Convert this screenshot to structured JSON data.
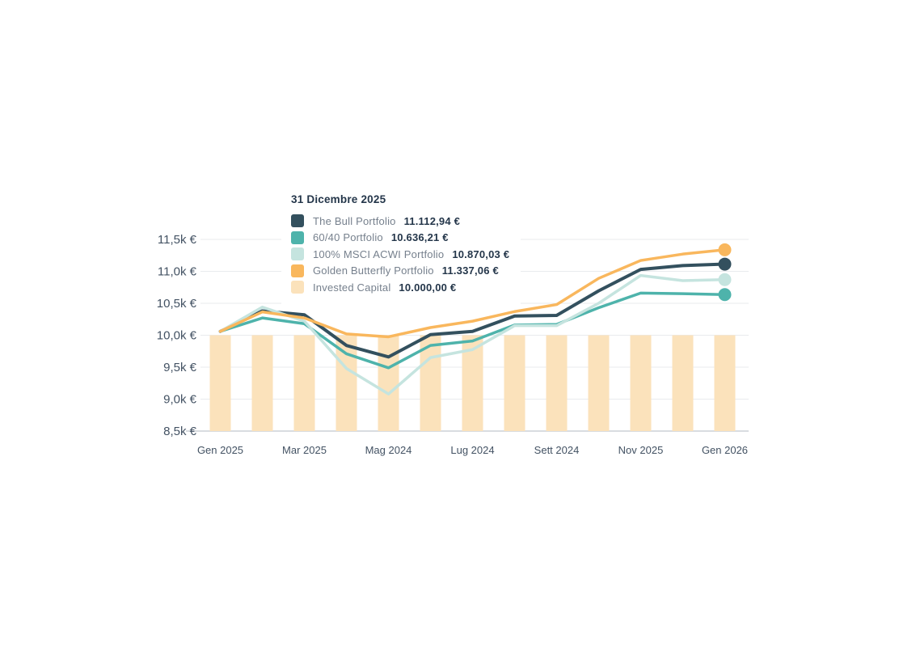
{
  "tooltip": {
    "date": "31 Dicembre 2025",
    "rows": [
      {
        "label": "The Bull Portfolio",
        "value": "11.112,94 €",
        "color": "#33505e"
      },
      {
        "label": "60/40 Portfolio",
        "value": "10.636,21 €",
        "color": "#4eb3ab"
      },
      {
        "label": "100% MSCI ACWI Portfolio",
        "value": "10.870,03 €",
        "color": "#c5e4df"
      },
      {
        "label": "Golden Butterfly Portfolio",
        "value": "11.337,06 €",
        "color": "#f9b75d"
      },
      {
        "label": "Invested Capital",
        "value": "10.000,00 €",
        "color": "#fbe2bb"
      }
    ]
  },
  "chart_data": {
    "type": "line",
    "title": "",
    "xlabel": "",
    "ylabel": "",
    "months_count": 13,
    "x_tick_labels": [
      "Gen 2025",
      "Mar 2025",
      "Mag 2024",
      "Lug 2024",
      "Sett 2024",
      "Nov 2025",
      "Gen 2026"
    ],
    "x_tick_month_indices": [
      0,
      2,
      4,
      6,
      8,
      10,
      12
    ],
    "y_tick_labels": [
      "11,5k €",
      "11,0k €",
      "10,5k €",
      "10,0k €",
      "9,5k €",
      "9,0k €",
      "8,5k €"
    ],
    "y_range": [
      8500,
      11500
    ],
    "grid": true,
    "legend_position": "tooltip-overlay",
    "series": [
      {
        "name": "The Bull Portfolio",
        "color": "#33505e",
        "stroke_width": 4,
        "values": [
          10060,
          10380,
          10320,
          9840,
          9660,
          10010,
          10060,
          10300,
          10310,
          10695,
          11030,
          11090,
          11112.94
        ]
      },
      {
        "name": "60/40 Portfolio",
        "color": "#4eb3ab",
        "stroke_width": 3.5,
        "values": [
          10060,
          10270,
          10180,
          9710,
          9490,
          9840,
          9910,
          10160,
          10170,
          10430,
          10660,
          10650,
          10636.21
        ]
      },
      {
        "name": "100% MSCI ACWI Portfolio",
        "color": "#c5e4df",
        "stroke_width": 3.5,
        "values": [
          10060,
          10440,
          10220,
          9480,
          9080,
          9650,
          9775,
          10150,
          10150,
          10500,
          10935,
          10855,
          10870.03
        ]
      },
      {
        "name": "Golden Butterfly Portfolio",
        "color": "#f9b75d",
        "stroke_width": 3.5,
        "values": [
          10060,
          10365,
          10270,
          10020,
          9975,
          10120,
          10220,
          10370,
          10480,
          10890,
          11170,
          11270,
          11337.06
        ]
      }
    ],
    "bars": {
      "name": "Invested Capital",
      "color": "#fbe2bb",
      "values": [
        10000,
        10000,
        10000,
        10000,
        10000,
        10000,
        10000,
        10000,
        10000,
        10000,
        10000,
        10000,
        10000
      ]
    },
    "end_dot_radius": 8
  }
}
